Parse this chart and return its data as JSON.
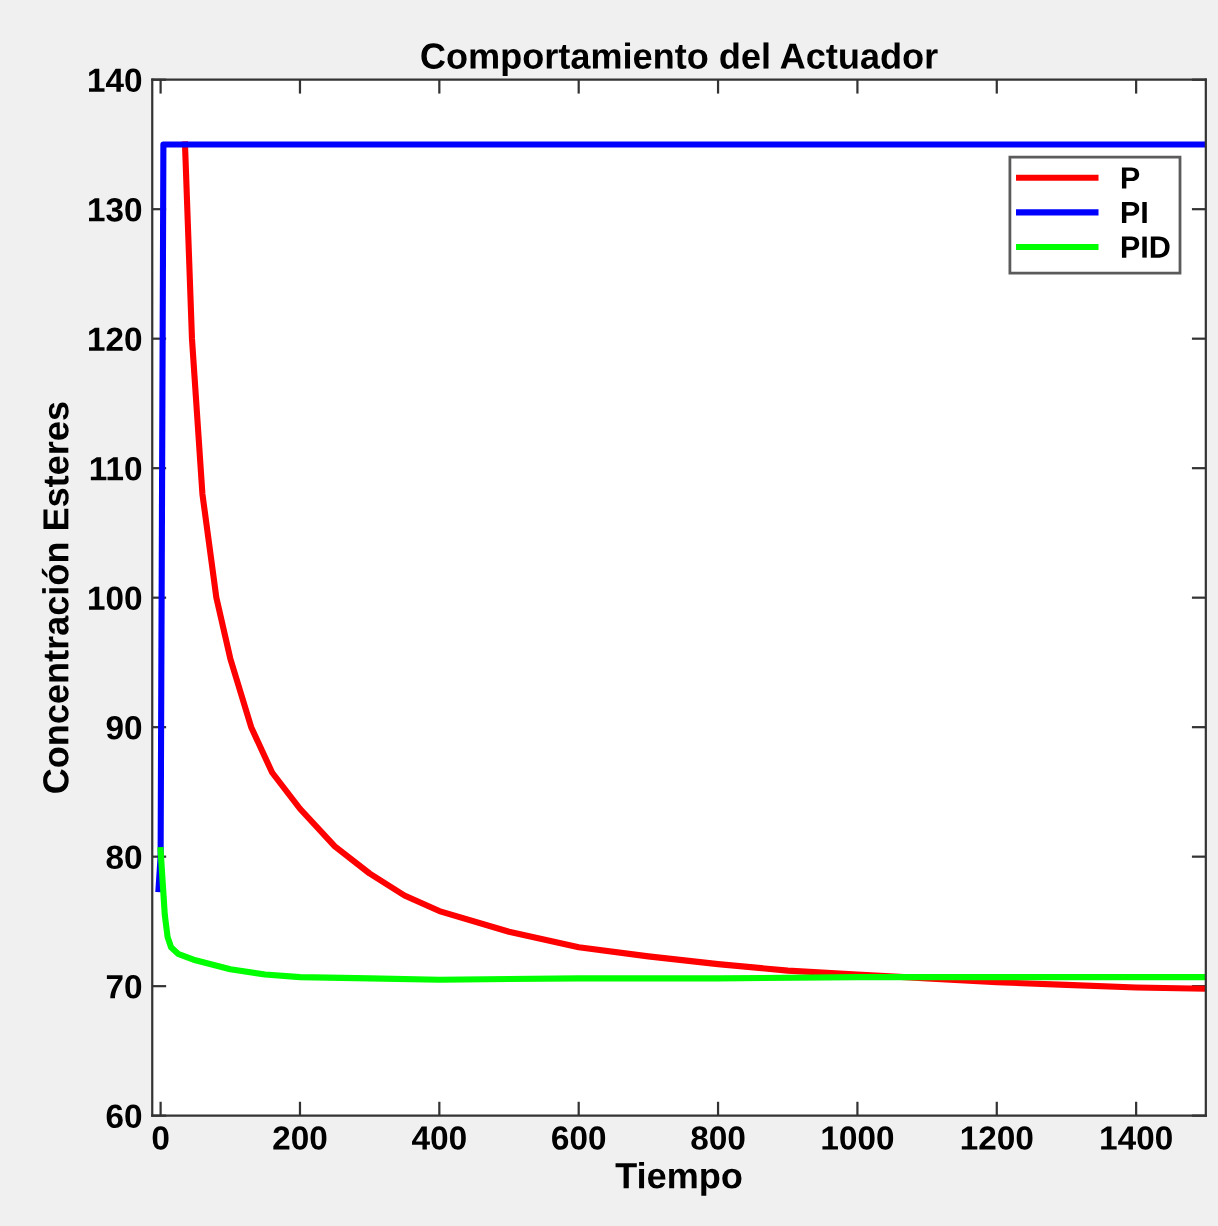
{
  "chart_data": {
    "type": "line",
    "title": "Comportamiento del Actuador",
    "xlabel": "Tiempo",
    "ylabel": "Concentración Esteres",
    "xlim": [
      -12,
      1500
    ],
    "ylim": [
      60,
      140
    ],
    "xticks": [
      0,
      200,
      400,
      600,
      800,
      1000,
      1200,
      1400
    ],
    "yticks": [
      60,
      70,
      80,
      90,
      100,
      110,
      120,
      130,
      140
    ],
    "grid": false,
    "legend": "top right",
    "marker": "none",
    "line_style": "solid",
    "series": [
      {
        "name": "P",
        "color": "#ff0000",
        "x": [
          35,
          45,
          60,
          80,
          100,
          130,
          160,
          200,
          250,
          300,
          350,
          400,
          500,
          600,
          700,
          800,
          900,
          1000,
          1100,
          1200,
          1300,
          1400,
          1500
        ],
        "values": [
          135,
          120,
          108,
          100,
          95.3,
          90,
          86.5,
          83.7,
          80.8,
          78.7,
          77,
          75.8,
          74.2,
          73,
          72.3,
          71.7,
          71.2,
          70.9,
          70.6,
          70.3,
          70.1,
          69.9,
          69.8
        ]
      },
      {
        "name": "PI",
        "color": "#0000ff",
        "x": [
          -3,
          0,
          4,
          1500
        ],
        "values": [
          77.5,
          80,
          135,
          135
        ]
      },
      {
        "name": "PID",
        "color": "#00ff00",
        "x": [
          0,
          3,
          6,
          10,
          15,
          25,
          50,
          100,
          150,
          200,
          300,
          400,
          600,
          800,
          1000,
          1200,
          1500
        ],
        "values": [
          80.5,
          78,
          75.5,
          73.8,
          73,
          72.5,
          72,
          71.3,
          70.9,
          70.7,
          70.6,
          70.5,
          70.6,
          70.6,
          70.7,
          70.7,
          70.7
        ]
      }
    ]
  }
}
